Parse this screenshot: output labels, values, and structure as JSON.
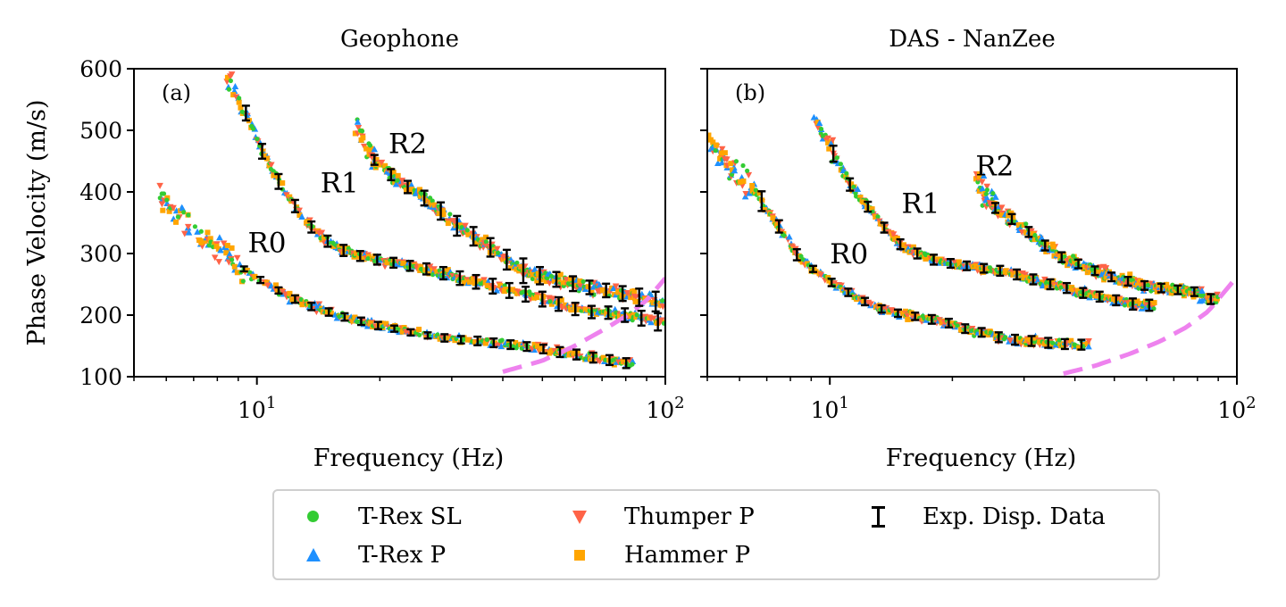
{
  "chart_data": [
    {
      "type": "scatter",
      "panel_label": "(a)",
      "title": "Geophone",
      "xlabel": "Frequency (Hz)",
      "ylabel": "Phase Velocity (m/s)",
      "xscale": "log",
      "xlim": [
        5,
        100
      ],
      "ylim": [
        100,
        600
      ],
      "yticks": [
        100,
        200,
        300,
        400,
        500,
        600
      ],
      "xtick_labels": [
        {
          "value": 10,
          "base": "10",
          "exp": "1"
        },
        {
          "value": 100,
          "base": "10",
          "exp": "2"
        }
      ],
      "grid": false,
      "annotations": [
        {
          "text": "R0",
          "x": 9.5,
          "y": 302
        },
        {
          "text": "R1",
          "x": 14.3,
          "y": 399
        },
        {
          "text": "R2",
          "x": 21,
          "y": 463
        }
      ],
      "exp_disp_data": {
        "R0": {
          "x": [
            9.3,
            10.2,
            11.3,
            12.4,
            13.6,
            15,
            16.4,
            18,
            19.8,
            21.7,
            23.8,
            26.2,
            28.8,
            31.6,
            34.7,
            38,
            41.8,
            45.8,
            50.3,
            55.2,
            60.6,
            66.6,
            73,
            80.2
          ],
          "y": [
            275,
            257,
            240,
            226,
            214,
            205,
            197,
            190,
            183,
            178,
            172,
            167,
            163,
            160,
            158,
            155,
            152,
            149,
            145,
            140,
            136,
            131,
            127,
            122
          ],
          "err": [
            4,
            5,
            5,
            6,
            6,
            6,
            6,
            6,
            6,
            5,
            5,
            5,
            6,
            6,
            7,
            7,
            7,
            7,
            7,
            8,
            8,
            8,
            8,
            8
          ]
        },
        "R1": {
          "x": [
            9.4,
            10.3,
            11.3,
            12.4,
            13.6,
            14.9,
            16.3,
            17.9,
            19.7,
            21.6,
            23.7,
            26,
            28.6,
            31.4,
            34.4,
            37.8,
            41.5,
            45.5,
            50,
            54.8,
            60.2,
            66,
            72.5,
            79.6,
            87.4,
            95.9
          ],
          "y": [
            528,
            466,
            417,
            377,
            343,
            320,
            305,
            296,
            290,
            285,
            280,
            275,
            268,
            260,
            254,
            247,
            240,
            234,
            226,
            218,
            210,
            205,
            204,
            200,
            195,
            189
          ],
          "err": [
            12,
            12,
            12,
            10,
            9,
            9,
            9,
            8,
            8,
            8,
            8,
            9,
            10,
            11,
            11,
            12,
            12,
            12,
            12,
            11,
            10,
            10,
            10,
            11,
            12,
            14
          ]
        },
        "R2": {
          "x": [
            19.4,
            21.3,
            23.4,
            25.7,
            28.2,
            30.9,
            33.9,
            37.3,
            40.9,
            44.9,
            49.3,
            54.1,
            59.4,
            65.2,
            71.6,
            78.6,
            86.3,
            94.7
          ],
          "y": [
            452,
            428,
            408,
            390,
            369,
            345,
            328,
            310,
            290,
            272,
            264,
            258,
            251,
            245,
            240,
            235,
            229,
            222
          ],
          "err": [
            8,
            9,
            10,
            12,
            14,
            16,
            15,
            15,
            16,
            20,
            14,
            12,
            12,
            11,
            11,
            12,
            14,
            16
          ]
        }
      },
      "cutoff_curve": {
        "x": [
          40,
          50,
          60,
          70,
          80,
          90,
          100
        ],
        "y": [
          108,
          126,
          150,
          175,
          198,
          224,
          260
        ]
      }
    },
    {
      "type": "scatter",
      "panel_label": "(b)",
      "title": "DAS - NanZee",
      "xlabel": "Frequency (Hz)",
      "ylabel": "",
      "xscale": "log",
      "xlim": [
        5,
        100
      ],
      "ylim": [
        100,
        600
      ],
      "yticks": [
        100,
        200,
        300,
        400,
        500,
        600
      ],
      "xtick_labels": [
        {
          "value": 10,
          "base": "10",
          "exp": "1"
        },
        {
          "value": 100,
          "base": "10",
          "exp": "2"
        }
      ],
      "grid": false,
      "annotations": [
        {
          "text": "R0",
          "x": 10,
          "y": 284
        },
        {
          "text": "R1",
          "x": 15,
          "y": 366
        },
        {
          "text": "R2",
          "x": 22.8,
          "y": 427
        }
      ],
      "exp_disp_data": {
        "R0": {
          "x": [
            6.8,
            7.5,
            8.3,
            9.1,
            10.1,
            11.1,
            12.2,
            13.4,
            14.7,
            16.2,
            17.8,
            19.6,
            21.5,
            23.6,
            26,
            28.5,
            31.3,
            34.4,
            37.8,
            41.5
          ],
          "y": [
            385,
            344,
            298,
            275,
            253,
            237,
            222,
            210,
            203,
            198,
            193,
            187,
            178,
            172,
            164,
            160,
            158,
            155,
            153,
            152
          ],
          "err": [
            16,
            10,
            9,
            5,
            6,
            6,
            6,
            6,
            6,
            6,
            7,
            7,
            7,
            7,
            8,
            8,
            8,
            8,
            8,
            8
          ]
        },
        "R1": {
          "x": [
            10.2,
            11.2,
            12.4,
            13.6,
            14.9,
            16.4,
            18,
            19.8,
            21.7,
            23.9,
            26.2,
            28.8,
            31.6,
            34.8,
            38.2,
            41.9,
            46,
            50.5,
            55.5,
            60.9
          ],
          "y": [
            462,
            412,
            376,
            342,
            315,
            300,
            290,
            284,
            280,
            276,
            272,
            266,
            258,
            250,
            244,
            236,
            230,
            224,
            218,
            216
          ],
          "err": [
            13,
            10,
            8,
            8,
            8,
            8,
            8,
            7,
            7,
            7,
            8,
            8,
            8,
            8,
            8,
            8,
            8,
            8,
            9,
            9
          ]
        },
        "R2": {
          "x": [
            25.5,
            28,
            30.8,
            33.8,
            37.1,
            40.8,
            44.8,
            49.2,
            54,
            59.3,
            65.2,
            71.6,
            78.6,
            86.3
          ],
          "y": [
            374,
            356,
            335,
            313,
            294,
            283,
            272,
            262,
            255,
            248,
            244,
            241,
            238,
            226
          ],
          "err": [
            8,
            8,
            8,
            8,
            8,
            7,
            7,
            7,
            7,
            7,
            7,
            7,
            7,
            8
          ]
        }
      },
      "cutoff_curve": {
        "x": [
          37.5,
          45,
          55,
          65,
          75,
          85,
          100
        ],
        "y": [
          105,
          118,
          138,
          158,
          180,
          206,
          262
        ]
      }
    }
  ],
  "legend": {
    "items": [
      {
        "label": "T-Rex SL",
        "marker": "circle",
        "color": "#33cc33"
      },
      {
        "label": "T-Rex P",
        "marker": "triangle-up",
        "color": "#1e90ff"
      },
      {
        "label": "Thumper P",
        "marker": "triangle-down",
        "color": "#ff6347"
      },
      {
        "label": "Hammer P",
        "marker": "square",
        "color": "#ffa500"
      },
      {
        "label": "Exp. Disp. Data",
        "marker": "errorbar",
        "color": "#000000"
      }
    ]
  },
  "colors": {
    "cutoff": "#ee82ee",
    "errorbar": "#000000"
  }
}
